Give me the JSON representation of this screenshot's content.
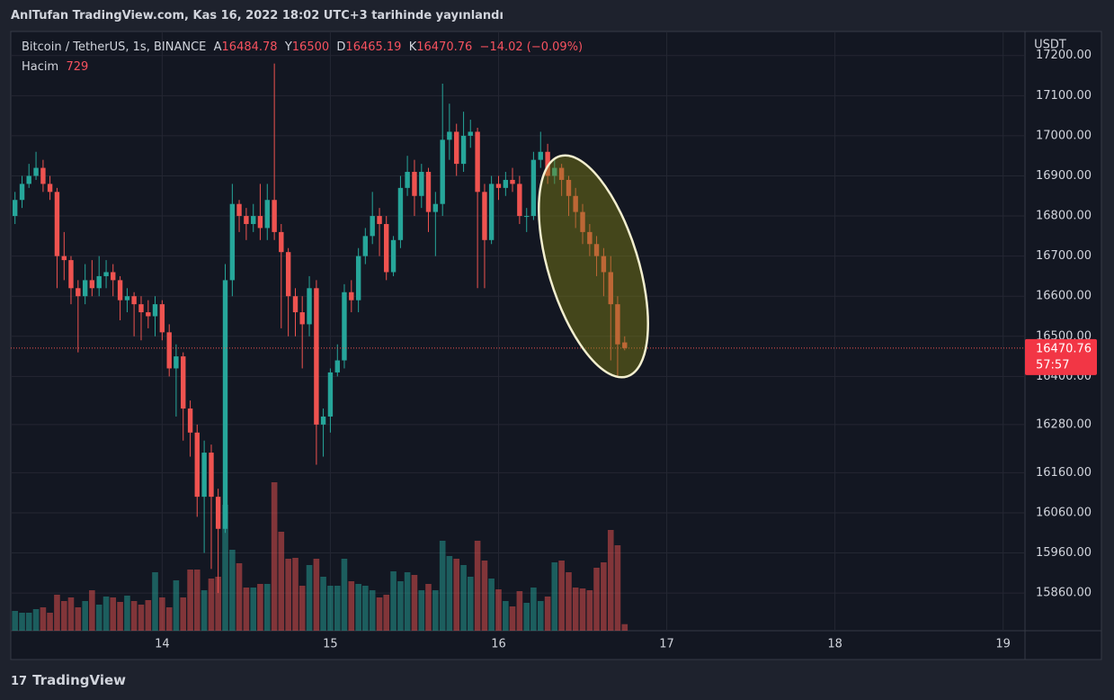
{
  "header": {
    "title": "AnlTufan TradingView.com, Kas 16, 2022 18:02 UTC+3 tarihinde yayınlandı"
  },
  "footer": {
    "brand": "TradingView"
  },
  "chart_data": {
    "type": "candlestick",
    "symbol": "Bitcoin / TetherUS, 1s, BINANCE",
    "ohlc_letters": [
      "A",
      "Y",
      "D",
      "K"
    ],
    "change": {
      "value": -14.02,
      "label": "−14.02 (−0.09%)"
    },
    "volume_label": "Hacim",
    "currency": "USDT",
    "countdown": "57:57",
    "up_color": "#26a69a",
    "down_color": "#ef5350",
    "grid": true,
    "xlim": [
      13.1,
      19.13
    ],
    "xticks": [
      14,
      15,
      16,
      17,
      18,
      19
    ],
    "ylim": [
      15766,
      17260
    ],
    "yticks": [
      {
        "value": 17200,
        "label": "17200.00"
      },
      {
        "value": 17100,
        "label": "17100.00"
      },
      {
        "value": 17000,
        "label": "17000.00"
      },
      {
        "value": 16900,
        "label": "16900.00"
      },
      {
        "value": 16800,
        "label": "16800.00"
      },
      {
        "value": 16700,
        "label": "16700.00"
      },
      {
        "value": 16600,
        "label": "16600.00"
      },
      {
        "value": 16500,
        "label": "16500.00"
      },
      {
        "value": 16400,
        "label": "16400.00"
      },
      {
        "value": 16280,
        "label": "16280.00"
      },
      {
        "value": 16160,
        "label": "16160.00"
      },
      {
        "value": 16060,
        "label": "16060.00"
      },
      {
        "value": 15960,
        "label": "15960.00"
      },
      {
        "value": 15860,
        "label": "15860.00"
      }
    ],
    "x": [
      13.125,
      13.167,
      13.208,
      13.25,
      13.292,
      13.333,
      13.375,
      13.417,
      13.458,
      13.5,
      13.542,
      13.583,
      13.625,
      13.667,
      13.708,
      13.75,
      13.792,
      13.833,
      13.875,
      13.917,
      13.958,
      14,
      14.042,
      14.083,
      14.125,
      14.167,
      14.208,
      14.25,
      14.292,
      14.333,
      14.375,
      14.417,
      14.458,
      14.5,
      14.542,
      14.583,
      14.625,
      14.667,
      14.708,
      14.75,
      14.792,
      14.833,
      14.875,
      14.917,
      14.958,
      15,
      15.042,
      15.083,
      15.125,
      15.167,
      15.208,
      15.25,
      15.292,
      15.333,
      15.375,
      15.417,
      15.458,
      15.5,
      15.542,
      15.583,
      15.625,
      15.667,
      15.708,
      15.75,
      15.792,
      15.833,
      15.875,
      15.917,
      15.958,
      16,
      16.042,
      16.083,
      16.125,
      16.167,
      16.208,
      16.25,
      16.292,
      16.333,
      16.375,
      16.417,
      16.458,
      16.5,
      16.542,
      16.583,
      16.625,
      16.667,
      16.708,
      16.75
    ],
    "ohlc": [
      [
        16800,
        16860,
        16780,
        16840
      ],
      [
        16840,
        16900,
        16820,
        16880
      ],
      [
        16880,
        16930,
        16870,
        16900
      ],
      [
        16900,
        16960,
        16890,
        16920
      ],
      [
        16920,
        16940,
        16860,
        16880
      ],
      [
        16880,
        16900,
        16840,
        16860
      ],
      [
        16860,
        16870,
        16620,
        16700
      ],
      [
        16700,
        16760,
        16640,
        16690
      ],
      [
        16690,
        16700,
        16580,
        16620
      ],
      [
        16620,
        16640,
        16460,
        16600
      ],
      [
        16600,
        16680,
        16580,
        16640
      ],
      [
        16640,
        16690,
        16600,
        16620
      ],
      [
        16620,
        16700,
        16600,
        16650
      ],
      [
        16650,
        16690,
        16620,
        16660
      ],
      [
        16660,
        16680,
        16600,
        16640
      ],
      [
        16640,
        16650,
        16540,
        16590
      ],
      [
        16590,
        16620,
        16560,
        16600
      ],
      [
        16600,
        16610,
        16500,
        16580
      ],
      [
        16580,
        16600,
        16490,
        16560
      ],
      [
        16560,
        16590,
        16520,
        16550
      ],
      [
        16550,
        16600,
        16500,
        16580
      ],
      [
        16580,
        16590,
        16490,
        16510
      ],
      [
        16510,
        16530,
        16400,
        16420
      ],
      [
        16420,
        16480,
        16300,
        16450
      ],
      [
        16450,
        16460,
        16240,
        16320
      ],
      [
        16320,
        16340,
        16200,
        16260
      ],
      [
        16260,
        16280,
        16050,
        16100
      ],
      [
        16100,
        16240,
        15960,
        16210
      ],
      [
        16210,
        16230,
        15920,
        16100
      ],
      [
        16100,
        16120,
        15860,
        16020
      ],
      [
        16020,
        16680,
        16010,
        16640
      ],
      [
        16640,
        16880,
        16600,
        16830
      ],
      [
        16830,
        16840,
        16760,
        16800
      ],
      [
        16800,
        16820,
        16740,
        16780
      ],
      [
        16780,
        16830,
        16760,
        16800
      ],
      [
        16800,
        16880,
        16740,
        16770
      ],
      [
        16770,
        16880,
        16740,
        16840
      ],
      [
        16840,
        17180,
        16740,
        16760
      ],
      [
        16760,
        16780,
        16520,
        16710
      ],
      [
        16710,
        16720,
        16500,
        16600
      ],
      [
        16600,
        16620,
        16500,
        16560
      ],
      [
        16560,
        16600,
        16420,
        16530
      ],
      [
        16530,
        16650,
        16500,
        16620
      ],
      [
        16620,
        16640,
        16180,
        16280
      ],
      [
        16280,
        16320,
        16200,
        16300
      ],
      [
        16300,
        16420,
        16260,
        16410
      ],
      [
        16410,
        16480,
        16400,
        16440
      ],
      [
        16440,
        16630,
        16420,
        16610
      ],
      [
        16610,
        16640,
        16560,
        16590
      ],
      [
        16590,
        16720,
        16560,
        16700
      ],
      [
        16700,
        16770,
        16680,
        16750
      ],
      [
        16750,
        16860,
        16730,
        16800
      ],
      [
        16800,
        16820,
        16700,
        16780
      ],
      [
        16780,
        16800,
        16640,
        16660
      ],
      [
        16660,
        16750,
        16650,
        16740
      ],
      [
        16740,
        16900,
        16720,
        16870
      ],
      [
        16870,
        16950,
        16850,
        16910
      ],
      [
        16910,
        16940,
        16800,
        16850
      ],
      [
        16850,
        16930,
        16820,
        16910
      ],
      [
        16910,
        16920,
        16760,
        16810
      ],
      [
        16810,
        16860,
        16700,
        16830
      ],
      [
        16830,
        17130,
        16800,
        16990
      ],
      [
        16990,
        17080,
        16940,
        17010
      ],
      [
        17010,
        17030,
        16900,
        16930
      ],
      [
        16930,
        17060,
        16910,
        17000
      ],
      [
        17000,
        17040,
        16970,
        17010
      ],
      [
        17010,
        17020,
        16620,
        16860
      ],
      [
        16860,
        16880,
        16620,
        16740
      ],
      [
        16740,
        16900,
        16730,
        16880
      ],
      [
        16880,
        16900,
        16840,
        16870
      ],
      [
        16870,
        16910,
        16850,
        16890
      ],
      [
        16890,
        16920,
        16860,
        16880
      ],
      [
        16880,
        16900,
        16780,
        16800
      ],
      [
        16800,
        16820,
        16760,
        16800
      ],
      [
        16800,
        16960,
        16790,
        16940
      ],
      [
        16940,
        17010,
        16920,
        16960
      ],
      [
        16960,
        16980,
        16880,
        16900
      ],
      [
        16900,
        16940,
        16880,
        16920
      ],
      [
        16920,
        16930,
        16850,
        16890
      ],
      [
        16890,
        16900,
        16800,
        16850
      ],
      [
        16850,
        16870,
        16770,
        16810
      ],
      [
        16810,
        16830,
        16730,
        16760
      ],
      [
        16760,
        16780,
        16700,
        16730
      ],
      [
        16730,
        16750,
        16650,
        16700
      ],
      [
        16700,
        16720,
        16600,
        16660
      ],
      [
        16660,
        16700,
        16440,
        16580
      ],
      [
        16580,
        16600,
        16400,
        16480
      ],
      [
        16484.78,
        16500,
        16465.19,
        16470.76
      ]
    ],
    "volume": [
      2200,
      2000,
      2000,
      2400,
      2600,
      2000,
      4000,
      3300,
      3700,
      2600,
      3300,
      4500,
      2900,
      3800,
      3700,
      3200,
      3900,
      3300,
      2900,
      3400,
      6500,
      3700,
      2600,
      5600,
      3700,
      6800,
      6800,
      4500,
      5800,
      6000,
      14000,
      9000,
      7500,
      4800,
      4800,
      5200,
      5200,
      16500,
      11000,
      8000,
      8100,
      5000,
      7300,
      8000,
      6000,
      5000,
      5000,
      8000,
      5500,
      5200,
      5000,
      4500,
      3700,
      4000,
      6600,
      5500,
      6500,
      6200,
      4500,
      5200,
      4500,
      10000,
      8300,
      8000,
      7300,
      6000,
      10000,
      7800,
      5800,
      4600,
      3300,
      2700,
      4400,
      3100,
      4800,
      3300,
      3800,
      7600,
      7800,
      6500,
      4800,
      4700,
      4500,
      7000,
      7600,
      11200,
      9500,
      729
    ]
  }
}
